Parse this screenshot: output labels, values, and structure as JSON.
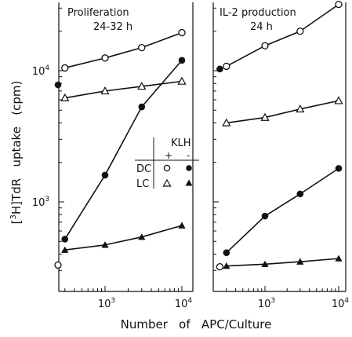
{
  "figure": {
    "ylabel_prefix": "[",
    "ylabel_sup": "3",
    "ylabel_rest": "H]TdR   uptake   (cpm)",
    "xlabel": "Number   of   APC/Culture",
    "y_ticks": [
      {
        "label_base": "10",
        "label_exp": "3",
        "value": 1000
      },
      {
        "label_base": "10",
        "label_exp": "4",
        "value": 10000
      }
    ],
    "x_ticks": [
      {
        "label_base": "10",
        "label_exp": "3",
        "value": 1000
      },
      {
        "label_base": "10",
        "label_exp": "4",
        "value": 10000
      }
    ]
  },
  "legend": {
    "header": "KLH",
    "plus": "+",
    "minus": "-",
    "rows": [
      {
        "label": "DC",
        "plus_marker": "open-circle",
        "minus_marker": "filled-circle"
      },
      {
        "label": "LC",
        "plus_marker": "open-triangle",
        "minus_marker": "filled-triangle"
      }
    ]
  },
  "chart_data": [
    {
      "type": "line",
      "title": "Proliferation\n24-32 h",
      "title_lines": [
        "Proliferation",
        "24-32 h"
      ],
      "xscale": "log",
      "yscale": "log",
      "xlim": [
        200,
        12000
      ],
      "ylim": [
        250,
        40000
      ],
      "xlabel": "Number of APC/Culture",
      "ylabel": "[3H]TdR uptake (cpm)",
      "x": [
        300,
        1000,
        3000,
        10000
      ],
      "series": [
        {
          "marker": "open-circle",
          "values": [
            10500,
            12500,
            15000,
            19500
          ]
        },
        {
          "marker": "open-triangle",
          "values": [
            6200,
            7000,
            7600,
            8300
          ]
        },
        {
          "marker": "filled-circle",
          "values": [
            520,
            1600,
            5300,
            12000
          ]
        },
        {
          "marker": "filled-triangle",
          "values": [
            430,
            470,
            540,
            660
          ]
        }
      ],
      "background": [
        {
          "marker": "filled-circle",
          "x": 250,
          "y": 7800
        },
        {
          "marker": "open-circle",
          "x": 250,
          "y": 330
        }
      ]
    },
    {
      "type": "line",
      "title": "IL-2 production\n24 h",
      "title_lines": [
        "IL-2 production",
        "24 h"
      ],
      "xscale": "log",
      "yscale": "log",
      "xlim": [
        200,
        12000
      ],
      "ylim": [
        250,
        40000
      ],
      "xlabel": "Number of APC/Culture",
      "ylabel": "[3H]TdR uptake (cpm)",
      "x": [
        300,
        1000,
        3000,
        10000
      ],
      "series": [
        {
          "marker": "open-circle",
          "values": [
            10800,
            15500,
            20000,
            32000
          ]
        },
        {
          "marker": "open-triangle",
          "values": [
            4000,
            4400,
            5100,
            5900
          ]
        },
        {
          "marker": "filled-circle",
          "values": [
            410,
            780,
            1150,
            1800
          ]
        },
        {
          "marker": "filled-triangle",
          "values": [
            325,
            335,
            350,
            370
          ]
        }
      ],
      "background": [
        {
          "marker": "filled-circle",
          "x": 250,
          "y": 10300
        },
        {
          "marker": "open-circle",
          "x": 250,
          "y": 320
        }
      ]
    }
  ]
}
